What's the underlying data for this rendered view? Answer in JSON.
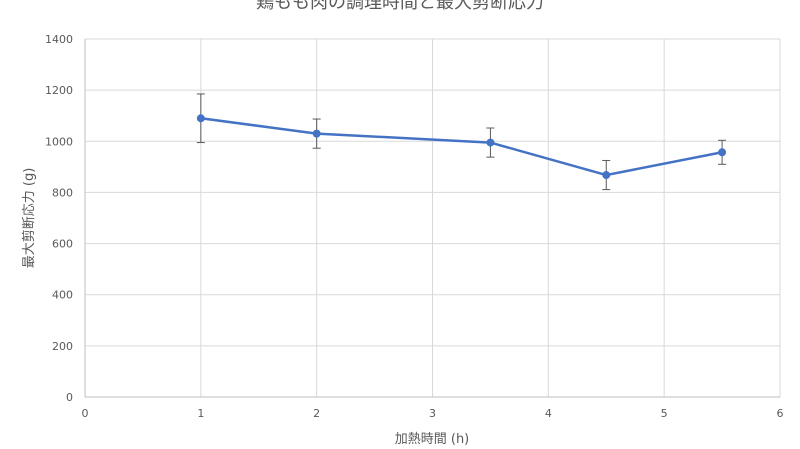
{
  "chart_data": {
    "type": "scatter",
    "title": "鶏もも肉の調理時間と最大剪断応力",
    "xlabel": "加熱時間 (h)",
    "ylabel": "最大剪断応力 (g)",
    "xlim": [
      0,
      6
    ],
    "ylim": [
      0,
      1400
    ],
    "x_ticks": [
      0,
      1,
      2,
      3,
      4,
      5,
      6
    ],
    "y_ticks": [
      0,
      200,
      400,
      600,
      800,
      1000,
      1200,
      1400
    ],
    "x_tick_labels": [
      "0",
      "1",
      "2",
      "3",
      "4",
      "5",
      "6"
    ],
    "y_tick_labels": [
      "0",
      "200",
      "400",
      "600",
      "800",
      "1000",
      "1200",
      "1400"
    ],
    "grid": true,
    "lines_connected": true,
    "series": [
      {
        "x": [
          1,
          2,
          3.5,
          4.5,
          5.5
        ],
        "y": [
          1090,
          1030,
          995,
          868,
          957
        ],
        "error": [
          95,
          57,
          57,
          57,
          47
        ],
        "color": "#4472c4"
      }
    ]
  },
  "colors": {
    "series": "#4472c4",
    "grid": "#d9d9d9",
    "text": "#595959",
    "error_bar": "#595959"
  }
}
